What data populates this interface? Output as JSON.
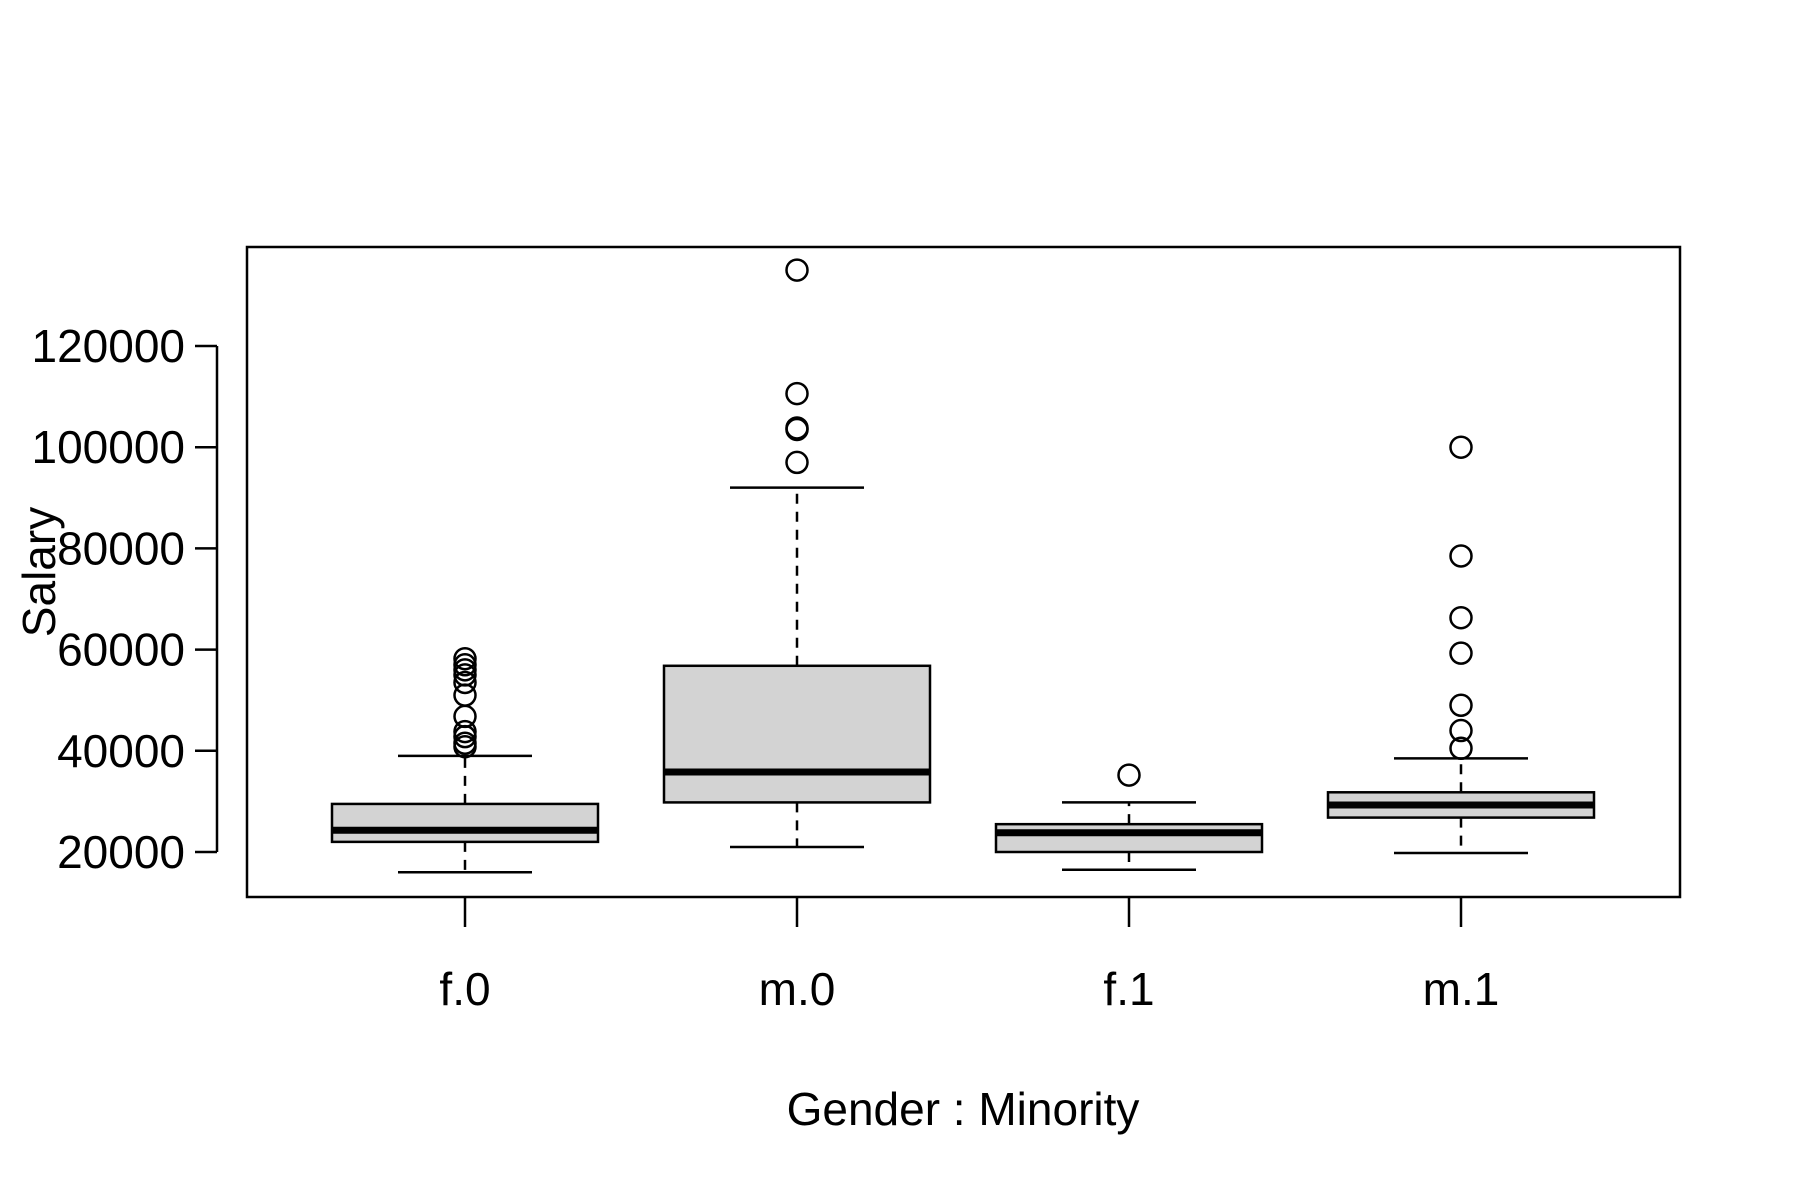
{
  "chart_data": {
    "type": "boxplot",
    "xlabel": "Gender : Minority",
    "ylabel": "Salary",
    "ylim": [
      11000,
      139000
    ],
    "yticks": [
      20000,
      40000,
      60000,
      80000,
      100000,
      120000
    ],
    "colors": {
      "box_fill": "#d3d3d3",
      "stroke": "#000000"
    },
    "groups": [
      {
        "name": "f.0",
        "whisker_low": 16000,
        "q1": 22000,
        "median": 24300,
        "q3": 29500,
        "whisker_high": 39000,
        "outliers": [
          40800,
          41500,
          42800,
          43800,
          46800,
          51000,
          53500,
          55000,
          56000,
          57000,
          58200
        ]
      },
      {
        "name": "m.0",
        "whisker_low": 21000,
        "q1": 29800,
        "median": 35800,
        "q3": 56800,
        "whisker_high": 92000,
        "outliers": [
          97000,
          103500,
          103800,
          110600,
          135000
        ]
      },
      {
        "name": "f.1",
        "whisker_low": 16500,
        "q1": 20000,
        "median": 23800,
        "q3": 25500,
        "whisker_high": 29800,
        "outliers": [
          35200
        ]
      },
      {
        "name": "m.1",
        "whisker_low": 19800,
        "q1": 26800,
        "median": 29300,
        "q3": 31800,
        "whisker_high": 38500,
        "outliers": [
          40500,
          44000,
          49000,
          59300,
          66300,
          78500,
          100000
        ]
      }
    ]
  }
}
